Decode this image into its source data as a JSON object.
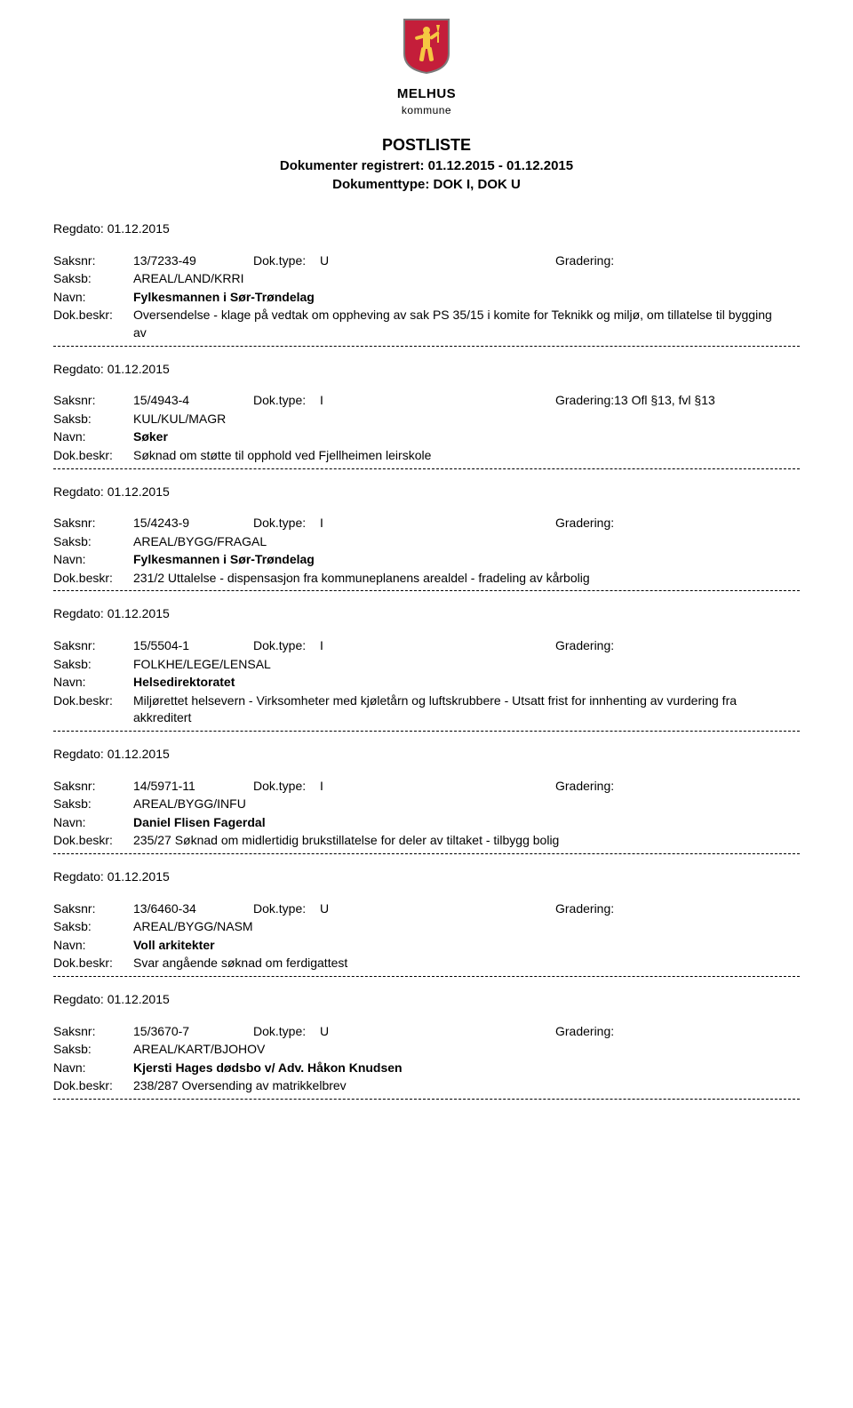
{
  "logo": {
    "name": "MELHUS",
    "subtext": "kommune",
    "shield_fill": "#c41e3a",
    "shield_border": "#7a7a7a",
    "figure_fill": "#f5c842"
  },
  "title": "POSTLISTE",
  "subtitle1": "Dokumenter registrert: 01.12.2015 - 01.12.2015",
  "subtitle2": "Dokumenttype: DOK I, DOK U",
  "labels": {
    "regdato": "Regdato:",
    "saksnr": "Saksnr:",
    "doktype": "Dok.type:",
    "gradering": "Gradering:",
    "saksb": "Saksb:",
    "navn": "Navn:",
    "dokbeskr": "Dok.beskr:"
  },
  "entries": [
    {
      "regdato": "01.12.2015",
      "saksnr": "13/7233-49",
      "doktype": "U",
      "gradering": "",
      "saksb": "AREAL/LAND/KRRI",
      "navn": "Fylkesmannen i Sør-Trøndelag",
      "dokbeskr": "Oversendelse - klage på vedtak om oppheving av sak PS 35/15 i komite for Teknikk og miljø, om tillatelse til bygging av"
    },
    {
      "regdato": "01.12.2015",
      "saksnr": "15/4943-4",
      "doktype": "I",
      "gradering": "13 Ofl §13, fvl §13",
      "saksb": "KUL/KUL/MAGR",
      "navn": "Søker",
      "dokbeskr": "Søknad om støtte til opphold ved Fjellheimen leirskole"
    },
    {
      "regdato": "01.12.2015",
      "saksnr": "15/4243-9",
      "doktype": "I",
      "gradering": "",
      "saksb": "AREAL/BYGG/FRAGAL",
      "navn": "Fylkesmannen i Sør-Trøndelag",
      "dokbeskr": "231/2 Uttalelse - dispensasjon fra kommuneplanens arealdel - fradeling av kårbolig"
    },
    {
      "regdato": "01.12.2015",
      "saksnr": "15/5504-1",
      "doktype": "I",
      "gradering": "",
      "saksb": "FOLKHE/LEGE/LENSAL",
      "navn": "Helsedirektoratet",
      "dokbeskr": "Miljørettet helsevern - Virksomheter med kjøletårn og luftskrubbere - Utsatt frist for innhenting av vurdering fra akkreditert"
    },
    {
      "regdato": "01.12.2015",
      "saksnr": "14/5971-11",
      "doktype": "I",
      "gradering": "",
      "saksb": "AREAL/BYGG/INFU",
      "navn": "Daniel Flisen Fagerdal",
      "dokbeskr": "235/27 Søknad om midlertidig brukstillatelse for deler av tiltaket - tilbygg bolig"
    },
    {
      "regdato": "01.12.2015",
      "saksnr": "13/6460-34",
      "doktype": "U",
      "gradering": "",
      "saksb": "AREAL/BYGG/NASM",
      "navn": "Voll arkitekter",
      "dokbeskr": "Svar angående søknad om ferdigattest"
    },
    {
      "regdato": "01.12.2015",
      "saksnr": "15/3670-7",
      "doktype": "U",
      "gradering": "",
      "saksb": "AREAL/KART/BJOHOV",
      "navn": "Kjersti Hages dødsbo v/ Adv. Håkon Knudsen",
      "dokbeskr": "238/287 Oversending av matrikkelbrev"
    }
  ]
}
